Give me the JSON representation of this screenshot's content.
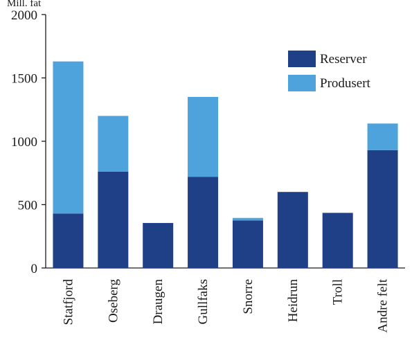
{
  "chart_data": {
    "type": "bar",
    "stacked": true,
    "unit_label": "Mill. fat",
    "categories": [
      "Statfjord",
      "Oseberg",
      "Draugen",
      "Gullfaks",
      "Snorre",
      "Heidrun",
      "Troll",
      "Andre felt"
    ],
    "series": [
      {
        "name": "Reserver",
        "values": [
          430,
          760,
          355,
          720,
          375,
          600,
          435,
          930
        ]
      },
      {
        "name": "Produsert",
        "values": [
          1200,
          440,
          0,
          630,
          20,
          0,
          0,
          210
        ]
      }
    ],
    "ylim": [
      0,
      2000
    ],
    "yticks": [
      0,
      500,
      1000,
      1500,
      2000
    ],
    "legend_position": "top-right",
    "grid": false,
    "colors": {
      "Reserver": "#1f3f86",
      "Produsert": "#4ea3dc",
      "axis": "#1a1a1a"
    }
  }
}
